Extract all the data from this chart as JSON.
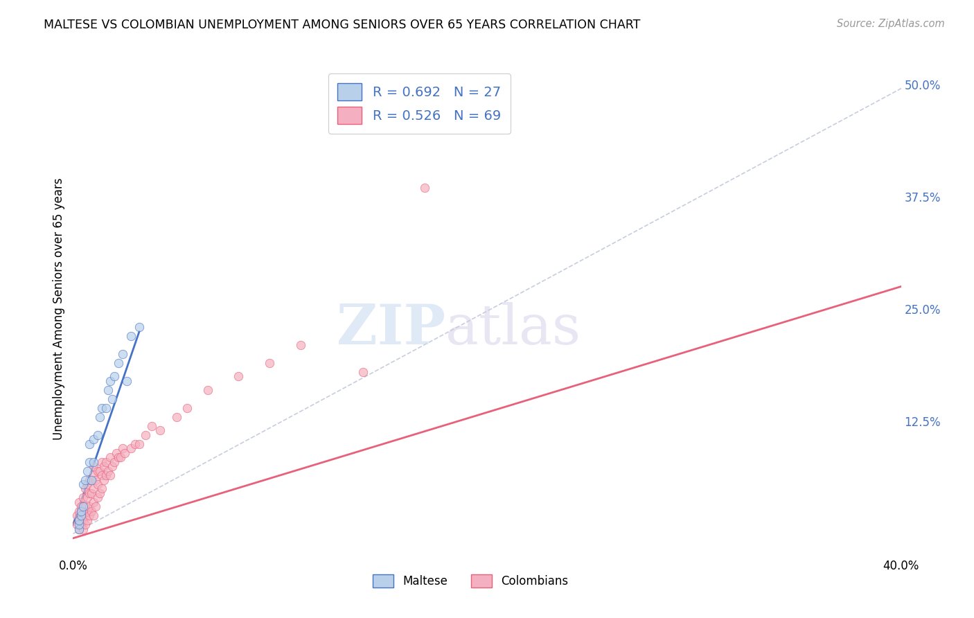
{
  "title": "MALTESE VS COLOMBIAN UNEMPLOYMENT AMONG SENIORS OVER 65 YEARS CORRELATION CHART",
  "source": "Source: ZipAtlas.com",
  "ylabel": "Unemployment Among Seniors over 65 years",
  "watermark_zip": "ZIP",
  "watermark_atlas": "atlas",
  "maltese_R": 0.692,
  "maltese_N": 27,
  "colombian_R": 0.526,
  "colombian_N": 69,
  "maltese_color": "#b8d0ea",
  "colombian_color": "#f4b0c0",
  "maltese_line_color": "#4472c4",
  "colombian_line_color": "#e8607a",
  "dashed_line_color": "#c0c8d8",
  "right_axis_color": "#4472c4",
  "xlim": [
    0.0,
    0.4
  ],
  "ylim": [
    -0.025,
    0.525
  ],
  "right_yticks": [
    0.0,
    0.125,
    0.25,
    0.375,
    0.5
  ],
  "right_yticklabels": [
    "",
    "12.5%",
    "25.0%",
    "37.5%",
    "50.0%"
  ],
  "xticks": [
    0.0,
    0.1,
    0.2,
    0.3,
    0.4
  ],
  "xticklabels": [
    "0.0%",
    "",
    "",
    "",
    "40.0%"
  ],
  "maltese_scatter_x": [
    0.003,
    0.003,
    0.003,
    0.004,
    0.004,
    0.005,
    0.005,
    0.006,
    0.007,
    0.008,
    0.008,
    0.009,
    0.01,
    0.01,
    0.012,
    0.013,
    0.014,
    0.016,
    0.017,
    0.018,
    0.019,
    0.02,
    0.022,
    0.024,
    0.026,
    0.028,
    0.032
  ],
  "maltese_scatter_y": [
    0.005,
    0.01,
    0.015,
    0.02,
    0.025,
    0.03,
    0.055,
    0.06,
    0.07,
    0.08,
    0.1,
    0.06,
    0.08,
    0.105,
    0.11,
    0.13,
    0.14,
    0.14,
    0.16,
    0.17,
    0.15,
    0.175,
    0.19,
    0.2,
    0.17,
    0.22,
    0.23
  ],
  "colombian_scatter_x": [
    0.002,
    0.002,
    0.003,
    0.003,
    0.003,
    0.003,
    0.004,
    0.004,
    0.004,
    0.005,
    0.005,
    0.005,
    0.006,
    0.006,
    0.006,
    0.006,
    0.007,
    0.007,
    0.007,
    0.007,
    0.008,
    0.008,
    0.008,
    0.008,
    0.009,
    0.009,
    0.01,
    0.01,
    0.01,
    0.01,
    0.01,
    0.011,
    0.011,
    0.012,
    0.012,
    0.012,
    0.013,
    0.013,
    0.014,
    0.014,
    0.014,
    0.015,
    0.015,
    0.016,
    0.016,
    0.017,
    0.018,
    0.018,
    0.019,
    0.02,
    0.021,
    0.022,
    0.023,
    0.024,
    0.025,
    0.028,
    0.03,
    0.032,
    0.035,
    0.038,
    0.042,
    0.05,
    0.055,
    0.065,
    0.08,
    0.095,
    0.11,
    0.14,
    0.17
  ],
  "colombian_scatter_y": [
    0.01,
    0.02,
    0.005,
    0.015,
    0.025,
    0.035,
    0.01,
    0.02,
    0.03,
    0.005,
    0.015,
    0.04,
    0.01,
    0.02,
    0.03,
    0.05,
    0.015,
    0.025,
    0.04,
    0.055,
    0.02,
    0.03,
    0.045,
    0.06,
    0.025,
    0.045,
    0.02,
    0.035,
    0.05,
    0.065,
    0.075,
    0.03,
    0.06,
    0.04,
    0.055,
    0.07,
    0.045,
    0.07,
    0.05,
    0.065,
    0.08,
    0.06,
    0.075,
    0.065,
    0.08,
    0.07,
    0.065,
    0.085,
    0.075,
    0.08,
    0.09,
    0.085,
    0.085,
    0.095,
    0.09,
    0.095,
    0.1,
    0.1,
    0.11,
    0.12,
    0.115,
    0.13,
    0.14,
    0.16,
    0.175,
    0.19,
    0.21,
    0.18,
    0.385
  ],
  "maltese_line_x": [
    0.0,
    0.032
  ],
  "maltese_line_y": [
    0.01,
    0.225
  ],
  "colombian_line_x": [
    0.0,
    0.4
  ],
  "colombian_line_y": [
    -0.005,
    0.275
  ],
  "dashed_line_x": [
    0.0,
    0.42
  ],
  "dashed_line_y": [
    0.0,
    0.52
  ],
  "background_color": "#ffffff",
  "grid_color": "#e0e0e0",
  "legend_edge_color": "#cccccc"
}
